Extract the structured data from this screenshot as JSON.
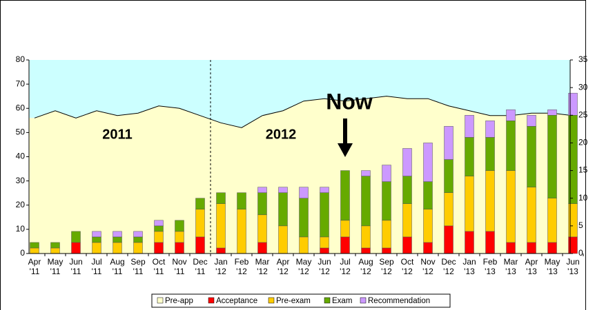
{
  "chart_data": {
    "type": "bar",
    "categories": [
      "Apr '11",
      "May '11",
      "Jun '11",
      "Jul '11",
      "Aug '11",
      "Sep '11",
      "Oct '11",
      "Nov '11",
      "Dec '11",
      "Jan '12",
      "Feb '12",
      "Mar '12",
      "Apr '12",
      "May '12",
      "Jun '12",
      "Jul '12",
      "Aug '12",
      "Sep '12",
      "Oct '12",
      "Nov '12",
      "Dec '12",
      "Jan '13",
      "Feb '13",
      "Mar '13",
      "Apr '13",
      "May '13",
      "Jun '13"
    ],
    "series": [
      {
        "name": "Pre-app",
        "type": "area",
        "axis": "y",
        "color": "#ffffcc",
        "values": [
          56,
          59,
          56,
          59,
          57,
          58,
          61,
          60,
          57,
          54,
          52,
          57,
          59,
          63,
          64,
          63,
          64,
          65,
          64,
          64,
          61,
          59,
          57,
          57,
          58,
          58,
          57
        ]
      },
      {
        "name": "Acceptance",
        "axis": "y2",
        "color": "#ff0000",
        "values": [
          0,
          0,
          2,
          0,
          0,
          0,
          2,
          2,
          3,
          1,
          0,
          2,
          0,
          0,
          1,
          3,
          1,
          1,
          3,
          2,
          5,
          4,
          4,
          2,
          2,
          2,
          3
        ]
      },
      {
        "name": "Pre-exam",
        "axis": "y2",
        "color": "#ffcc00",
        "values": [
          1,
          1,
          0,
          2,
          2,
          2,
          2,
          2,
          5,
          8,
          8,
          5,
          5,
          3,
          2,
          3,
          4,
          5,
          6,
          6,
          6,
          10,
          11,
          13,
          10,
          8,
          6
        ]
      },
      {
        "name": "Exam",
        "axis": "y2",
        "color": "#66aa00",
        "values": [
          1,
          1,
          2,
          1,
          1,
          1,
          1,
          2,
          2,
          2,
          3,
          4,
          6,
          7,
          8,
          9,
          9,
          7,
          5,
          5,
          6,
          7,
          6,
          9,
          11,
          15,
          16
        ]
      },
      {
        "name": "Recommendation",
        "axis": "y2",
        "color": "#cc99ff",
        "values": [
          0,
          0,
          0,
          1,
          1,
          1,
          1,
          0,
          0,
          0,
          0,
          1,
          1,
          2,
          1,
          0,
          1,
          3,
          5,
          7,
          6,
          4,
          3,
          2,
          2,
          1,
          4
        ]
      }
    ],
    "ylim": [
      0,
      80
    ],
    "yticks": [
      0,
      10,
      20,
      30,
      40,
      50,
      60,
      70,
      80
    ],
    "y2lim": [
      0,
      35
    ],
    "y2ticks": [
      0,
      5,
      10,
      15,
      20,
      25,
      30,
      35
    ],
    "annotations": [
      "2011",
      "2012",
      "Now"
    ],
    "legend": "bottom",
    "plot_background": "#ccffff"
  }
}
